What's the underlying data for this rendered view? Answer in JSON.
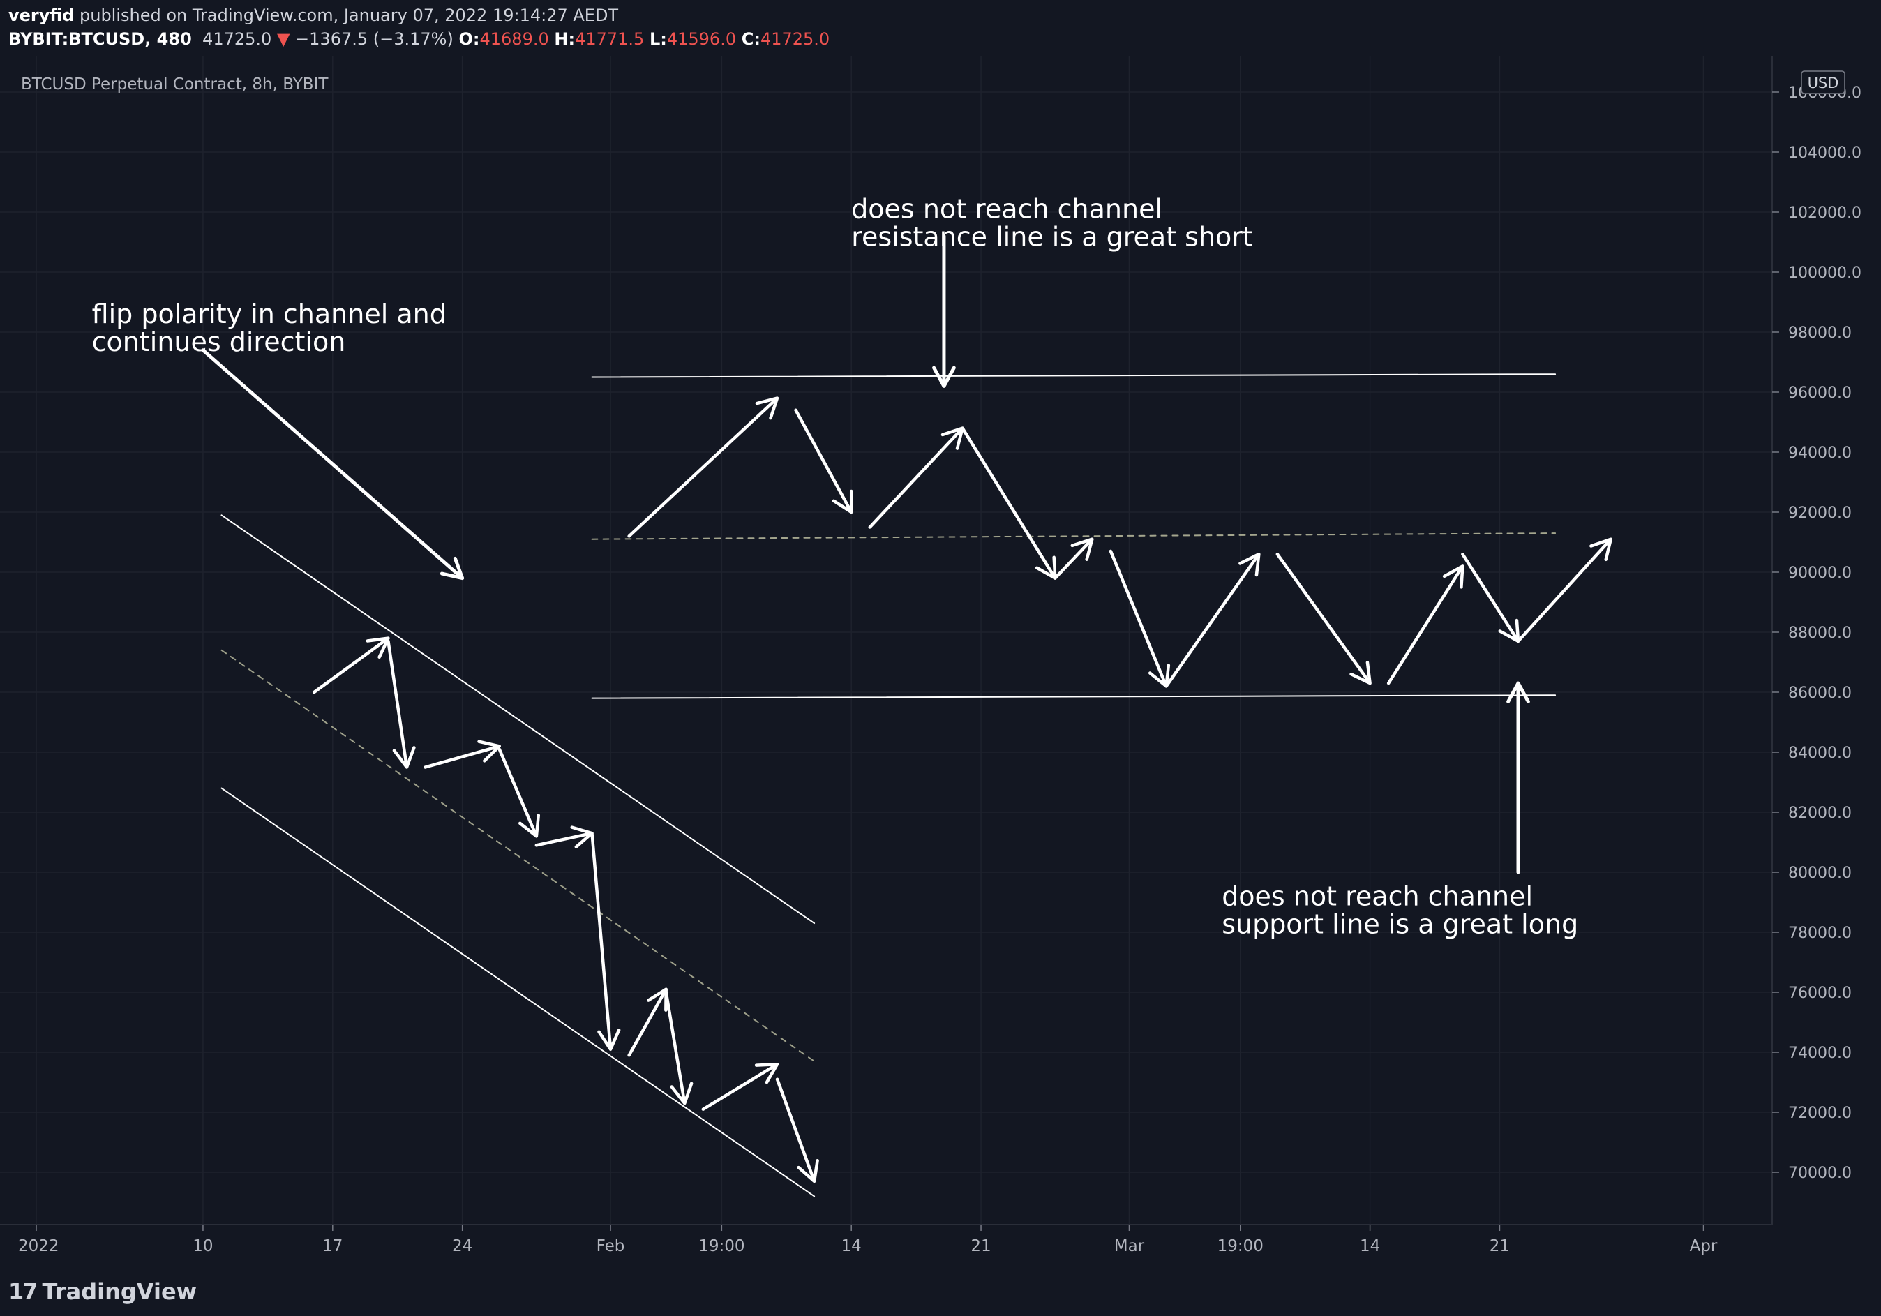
{
  "header": {
    "author": "veryfid",
    "published_text": " published on TradingView.com, January 07, 2022 19:14:27 AEDT",
    "symbol": "BYBIT:BTCUSD, 480",
    "last": "41725.0",
    "change_arrow": "▼",
    "change": "−1367.5 (−3.17%)",
    "o_label": "O:",
    "o": "41689.0",
    "h_label": "H:",
    "h": "41771.5",
    "l_label": "L:",
    "l": "41596.0",
    "c_label": "C:",
    "c": "41725.0"
  },
  "chart_data": {
    "type": "line",
    "title": "BTCUSD Perpetual Contract, 8h, BYBIT",
    "currency": "USD",
    "ylim": [
      68000,
      107000
    ],
    "y_ticks": [
      70000,
      72000,
      74000,
      76000,
      78000,
      80000,
      82000,
      84000,
      86000,
      88000,
      90000,
      92000,
      94000,
      96000,
      98000,
      100000,
      102000,
      104000,
      106000
    ],
    "y_tick_labels": [
      "70000.0",
      "72000.0",
      "74000.0",
      "76000.0",
      "78000.0",
      "80000.0",
      "82000.0",
      "84000.0",
      "86000.0",
      "88000.0",
      "90000.0",
      "92000.0",
      "94000.0",
      "96000.0",
      "98000.0",
      "100000.0",
      "102000.0",
      "104000.0",
      "106000.0"
    ],
    "x_ticks": [
      "2022",
      "10",
      "17",
      "24",
      "Feb",
      "19:00",
      "14",
      "21",
      "Mar",
      "19:00",
      "14",
      "21",
      "Apr"
    ],
    "x_tick_dates": [
      "2022-01-01",
      "2022-01-10",
      "2022-01-17",
      "2022-01-24",
      "2022-02-01",
      "2022-02-07",
      "2022-02-14",
      "2022-02-21",
      "2022-03-01",
      "2022-03-07",
      "2022-03-14",
      "2022-03-21",
      "2022-04-01"
    ],
    "grid": true,
    "descending_channel": {
      "upper": [
        [
          "2022-01-11",
          91900
        ],
        [
          "2022-02-12",
          78300
        ]
      ],
      "middle": [
        [
          "2022-01-11",
          87400
        ],
        [
          "2022-02-12",
          73700
        ]
      ],
      "lower": [
        [
          "2022-01-11",
          82800
        ],
        [
          "2022-02-12",
          69200
        ]
      ]
    },
    "range_channel": {
      "resistance": [
        [
          "2022-01-31",
          96500
        ],
        [
          "2022-03-24",
          96600
        ]
      ],
      "midline": [
        [
          "2022-01-31",
          91100
        ],
        [
          "2022-03-24",
          91300
        ]
      ],
      "support": [
        [
          "2022-01-31",
          85800
        ],
        [
          "2022-03-24",
          85900
        ]
      ]
    },
    "swing_arrows_desc": [
      [
        [
          "2022-01-16",
          86000
        ],
        [
          "2022-01-20",
          87800
        ]
      ],
      [
        [
          "2022-01-20",
          87700
        ],
        [
          "2022-01-21",
          83500
        ]
      ],
      [
        [
          "2022-01-22",
          83500
        ],
        [
          "2022-01-26",
          84200
        ]
      ],
      [
        [
          "2022-01-26",
          84100
        ],
        [
          "2022-01-28",
          81200
        ]
      ],
      [
        [
          "2022-01-28",
          80900
        ],
        [
          "2022-01-31",
          81300
        ]
      ],
      [
        [
          "2022-01-31",
          81300
        ],
        [
          "2022-02-01",
          74100
        ]
      ],
      [
        [
          "2022-02-02",
          73900
        ],
        [
          "2022-02-04",
          76100
        ]
      ],
      [
        [
          "2022-02-04",
          76000
        ],
        [
          "2022-02-05",
          72300
        ]
      ],
      [
        [
          "2022-02-06",
          72100
        ],
        [
          "2022-02-10",
          73600
        ]
      ],
      [
        [
          "2022-02-10",
          73100
        ],
        [
          "2022-02-12",
          69700
        ]
      ]
    ],
    "swing_arrows_range": [
      [
        [
          "2022-02-02",
          91200
        ],
        [
          "2022-02-10",
          95800
        ]
      ],
      [
        [
          "2022-02-11",
          95400
        ],
        [
          "2022-02-14",
          92000
        ]
      ],
      [
        [
          "2022-02-15",
          91500
        ],
        [
          "2022-02-20",
          94800
        ]
      ],
      [
        [
          "2022-02-20",
          94800
        ],
        [
          "2022-02-25",
          89800
        ]
      ],
      [
        [
          "2022-02-25",
          89800
        ],
        [
          "2022-02-27",
          91100
        ]
      ],
      [
        [
          "2022-02-28",
          90700
        ],
        [
          "2022-03-03",
          86200
        ]
      ],
      [
        [
          "2022-03-03",
          86200
        ],
        [
          "2022-03-08",
          90600
        ]
      ],
      [
        [
          "2022-03-09",
          90600
        ],
        [
          "2022-03-14",
          86300
        ]
      ],
      [
        [
          "2022-03-15",
          86300
        ],
        [
          "2022-03-19",
          90200
        ]
      ],
      [
        [
          "2022-03-19",
          90600
        ],
        [
          "2022-03-22",
          87700
        ]
      ],
      [
        [
          "2022-03-22",
          87700
        ],
        [
          "2022-03-27",
          91100
        ]
      ]
    ],
    "pointer_arrows": [
      [
        [
          "2022-01-10",
          97400
        ],
        [
          "2022-01-24",
          89800
        ]
      ],
      [
        [
          "2022-02-19",
          101200
        ],
        [
          "2022-02-19",
          96200
        ]
      ],
      [
        [
          "2022-03-22",
          80000
        ],
        [
          "2022-03-22",
          86300
        ]
      ]
    ],
    "annotations": [
      {
        "id": "a1",
        "lines": [
          "flip polarity in channel and",
          "continues direction"
        ],
        "at": [
          "2022-01-04",
          98300
        ]
      },
      {
        "id": "a2",
        "lines": [
          "does not reach channel",
          "resistance line is a great short"
        ],
        "at": [
          "2022-02-14",
          101800
        ]
      },
      {
        "id": "a3",
        "lines": [
          "does not reach channel",
          "support line is a great long"
        ],
        "at": [
          "2022-03-06",
          78900
        ]
      }
    ]
  },
  "footer": {
    "logo_mark": "17",
    "logo_text": "TradingView"
  }
}
